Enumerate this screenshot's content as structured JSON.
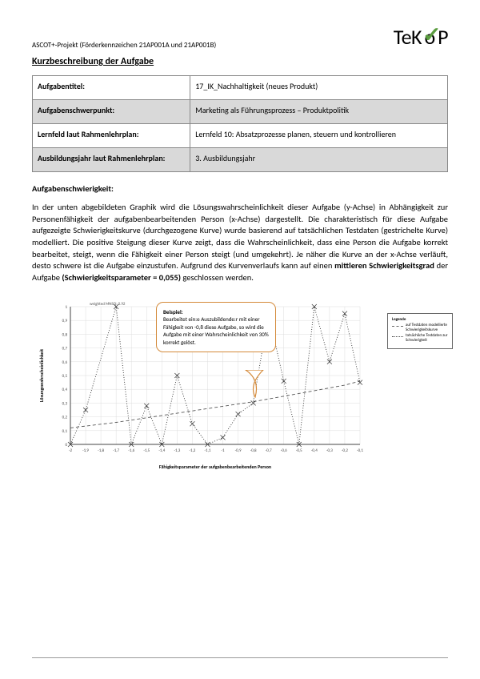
{
  "header": {
    "project_label": "ASCOT+-Projekt (Förderkennzeichen 21AP001A und 21AP001B)",
    "logo_text_1": "TeK",
    "logo_check": "✓",
    "logo_text_2": "P"
  },
  "section_title": "Kurzbeschreibung der Aufgabe",
  "meta": {
    "rows": [
      {
        "label": "Aufgabentitel:",
        "value": "17_IK_Nachhaltigkeit (neues Produkt)",
        "shaded": false
      },
      {
        "label": "Aufgabenschwerpunkt:",
        "value": "Marketing als Führungsprozess – Produktpolitik",
        "shaded": true
      },
      {
        "label": "Lernfeld laut Rahmenlehrplan:",
        "value": "Lernfeld 10: Absatzprozesse planen, steuern und kontrollieren",
        "shaded": false
      },
      {
        "label": "Ausbildungsjahr laut Rahmenlehrplan:",
        "value": "3. Ausbildungsjahr",
        "shaded": true
      }
    ]
  },
  "difficulty_heading": "Aufgabenschwierigkeit:",
  "body_text_pre": "In der unten abgebildeten Graphik wird die Lösungswahrscheinlichkeit dieser Aufgabe (y-Achse) in Abhängigkeit zur Personenfähigkeit der aufgabenbearbeitenden Person (x-Achse) dargestellt. Die charakteristisch für diese Aufgabe aufgezeigte Schwierigkeitskurve (durchgezogene Kurve) wurde basierend auf tatsächlichen Testdaten (gestrichelte Kurve) modelliert. Die positive Steigung dieser Kurve zeigt, dass die Wahrscheinlichkeit, dass eine Person die Aufgabe korrekt bearbeitet, steigt, wenn die Fähigkeit einer Person steigt (und umgekehrt). Je näher die Kurve an der x-Achse verläuft, desto schwere ist die Aufgabe einzustufen. Aufgrund des Kurvenverlaufs kann auf einen ",
  "body_bold_1": "mittleren Schwierigkeitsgrad",
  "body_text_mid": " der Aufgabe ",
  "body_bold_2": "(Schwierigkeitsparameter = 0,055)",
  "body_text_post": " geschlossen werden.",
  "chart": {
    "type": "line",
    "weighted_label": "weighted MNSQ: 0.92",
    "x_label": "Fähigkeitsparameter der aufgabenbearbeitenden Person",
    "y_label": "Lösungswahrscheinlichkeit",
    "xlim": [
      -2,
      -0.1
    ],
    "ylim": [
      0,
      1
    ],
    "x_ticks": [
      "-2",
      "-1,9",
      "-1,8",
      "-1,7",
      "-1,6",
      "-1,5",
      "-1,4",
      "-1,3",
      "-1,2",
      "-1,1",
      "-1",
      "-0,9",
      "-0,8",
      "-0,7",
      "-0,6",
      "-0,5",
      "-0,4",
      "-0,3",
      "-0,2",
      "-0,1"
    ],
    "y_ticks": [
      "0",
      "0,1",
      "0,2",
      "0,3",
      "0,4",
      "0,5",
      "0,6",
      "0,7",
      "0,8",
      "0,9",
      "1"
    ],
    "grid_color": "#dddddd",
    "axis_color": "#444444",
    "tick_font_size": 5,
    "label_font_size": 6,
    "model_curve": {
      "color": "#555555",
      "dash": "4,3",
      "width": 0.9,
      "points": [
        [
          -2,
          0.12
        ],
        [
          -1.7,
          0.16
        ],
        [
          -1.4,
          0.21
        ],
        [
          -1.1,
          0.26
        ],
        [
          -0.8,
          0.31
        ],
        [
          -0.5,
          0.37
        ],
        [
          -0.2,
          0.43
        ],
        [
          -0.1,
          0.46
        ]
      ]
    },
    "data_curve": {
      "color": "#333333",
      "dash": "1,2",
      "width": 0.9,
      "marker": "x",
      "marker_size": 3,
      "points": [
        [
          -2,
          0.0
        ],
        [
          -1.9,
          0.25
        ],
        [
          -1.7,
          1.0
        ],
        [
          -1.6,
          0.0
        ],
        [
          -1.5,
          0.28
        ],
        [
          -1.4,
          0.0
        ],
        [
          -1.3,
          0.5
        ],
        [
          -1.2,
          0.15
        ],
        [
          -1.1,
          0.0
        ],
        [
          -1.0,
          0.05
        ],
        [
          -0.9,
          0.22
        ],
        [
          -0.8,
          0.3
        ],
        [
          -0.7,
          0.95
        ],
        [
          -0.6,
          0.46
        ],
        [
          -0.5,
          0.0
        ],
        [
          -0.4,
          1.0
        ],
        [
          -0.3,
          0.6
        ],
        [
          -0.2,
          0.95
        ],
        [
          -0.1,
          0.45
        ]
      ]
    }
  },
  "legend": {
    "title": "Legende",
    "item1": "auf Testdaten modellierte Schwierigkeitskurve",
    "item2": "tatsächliche Testdaten zur Schwierigkeit"
  },
  "callout": {
    "title": "Beispiel:",
    "text": "Bearbeitet ein:e Auszubildende:r mit einer Fähigkeit von -0,8 diese Aufgabe, so wird die Aufgabe mit einer Wahrscheinlichkeit von 30% korrekt gelöst.",
    "border_color": "#d48a3a"
  }
}
